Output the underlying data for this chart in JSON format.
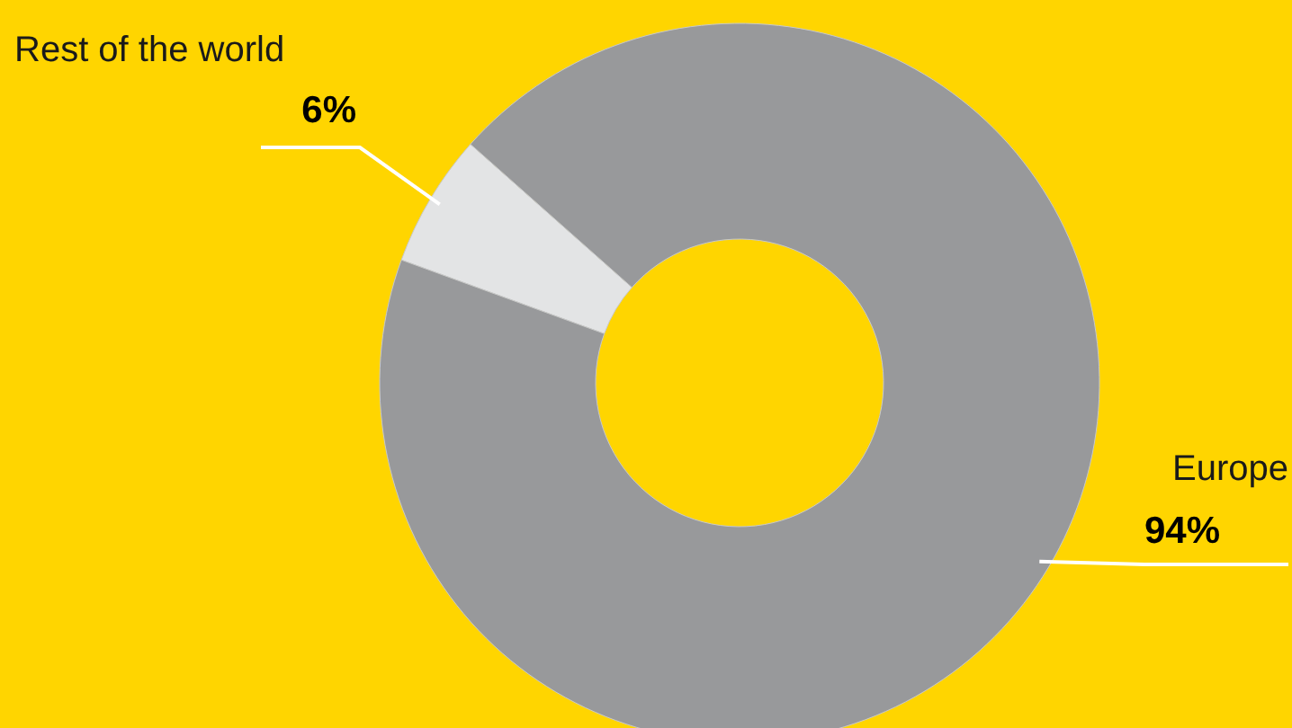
{
  "chart_data": {
    "type": "donut",
    "categories": [
      "Rest of the world",
      "Europe"
    ],
    "values": [
      6,
      94
    ],
    "colors": [
      "#e3e4e5",
      "#98999b"
    ],
    "value_labels": [
      "6%",
      "94%"
    ]
  }
}
